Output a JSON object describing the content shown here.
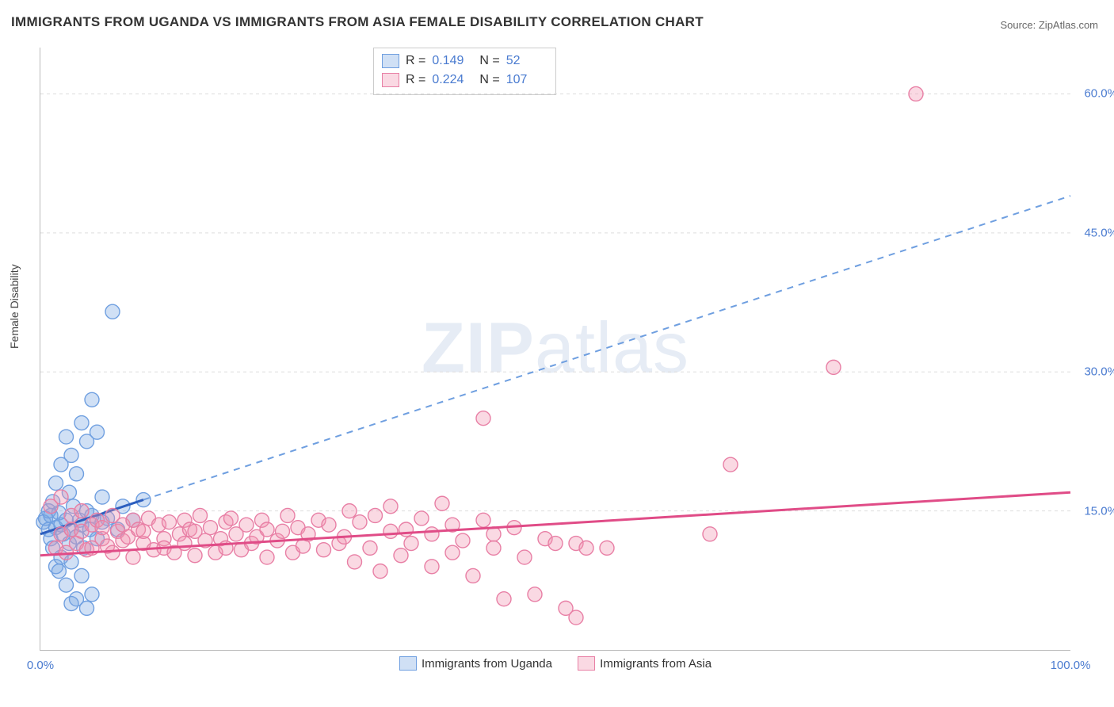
{
  "title": "IMMIGRANTS FROM UGANDA VS IMMIGRANTS FROM ASIA FEMALE DISABILITY CORRELATION CHART",
  "source": "Source: ZipAtlas.com",
  "ylabel": "Female Disability",
  "watermark_a": "ZIP",
  "watermark_b": "atlas",
  "chart": {
    "type": "scatter",
    "background_color": "#ffffff",
    "grid_color": "#dddddd",
    "xlim": [
      0,
      100
    ],
    "ylim": [
      0,
      65
    ],
    "xticks": [
      {
        "v": 0,
        "l": "0.0%"
      },
      {
        "v": 100,
        "l": "100.0%"
      }
    ],
    "yticks": [
      {
        "v": 15,
        "l": "15.0%"
      },
      {
        "v": 30,
        "l": "30.0%"
      },
      {
        "v": 45,
        "l": "45.0%"
      },
      {
        "v": 60,
        "l": "60.0%"
      }
    ],
    "marker_radius": 9,
    "series": [
      {
        "id": "uganda",
        "label": "Immigrants from Uganda",
        "fill": "rgba(120,165,225,0.35)",
        "stroke": "#6f9fe0",
        "line_color": "#2d5fbf",
        "dash_color": "#6f9fe0",
        "r": "0.149",
        "n": "52",
        "trend": {
          "x1": 0,
          "y1": 12.5,
          "x2": 10,
          "y2": 16.2
        },
        "trend_dash": {
          "x1": 10,
          "y1": 16.2,
          "x2": 100,
          "y2": 49
        },
        "points": [
          [
            0.3,
            13.8
          ],
          [
            0.5,
            14.2
          ],
          [
            0.8,
            13.0
          ],
          [
            0.8,
            15.0
          ],
          [
            1.0,
            12.0
          ],
          [
            1.0,
            14.5
          ],
          [
            1.2,
            11.0
          ],
          [
            1.2,
            16.0
          ],
          [
            1.5,
            9.0
          ],
          [
            1.5,
            13.2
          ],
          [
            1.5,
            18.0
          ],
          [
            1.8,
            8.5
          ],
          [
            1.8,
            14.8
          ],
          [
            2.0,
            10.0
          ],
          [
            2.0,
            13.5
          ],
          [
            2.0,
            20.0
          ],
          [
            2.2,
            12.5
          ],
          [
            2.5,
            7.0
          ],
          [
            2.5,
            14.0
          ],
          [
            2.5,
            23.0
          ],
          [
            2.8,
            11.5
          ],
          [
            2.8,
            17.0
          ],
          [
            3.0,
            9.5
          ],
          [
            3.0,
            13.0
          ],
          [
            3.0,
            21.0
          ],
          [
            3.2,
            15.5
          ],
          [
            3.5,
            5.5
          ],
          [
            3.5,
            12.2
          ],
          [
            3.5,
            19.0
          ],
          [
            3.8,
            14.0
          ],
          [
            4.0,
            8.0
          ],
          [
            4.0,
            13.5
          ],
          [
            4.0,
            24.5
          ],
          [
            4.2,
            11.0
          ],
          [
            4.5,
            15.0
          ],
          [
            4.5,
            22.5
          ],
          [
            4.8,
            13.0
          ],
          [
            5.0,
            6.0
          ],
          [
            5.0,
            14.5
          ],
          [
            5.0,
            27.0
          ],
          [
            5.5,
            12.0
          ],
          [
            5.5,
            23.5
          ],
          [
            6.0,
            13.8
          ],
          [
            6.0,
            16.5
          ],
          [
            6.5,
            14.2
          ],
          [
            7.0,
            36.5
          ],
          [
            7.5,
            13.0
          ],
          [
            8.0,
            15.5
          ],
          [
            9.0,
            14.0
          ],
          [
            10.0,
            16.2
          ],
          [
            3.0,
            5.0
          ],
          [
            4.5,
            4.5
          ]
        ]
      },
      {
        "id": "asia",
        "label": "Immigrants from Asia",
        "fill": "rgba(240,145,175,0.35)",
        "stroke": "#e87fa5",
        "line_color": "#e04c87",
        "r": "0.224",
        "n": "107",
        "trend": {
          "x1": 0,
          "y1": 10.2,
          "x2": 100,
          "y2": 17.0
        },
        "points": [
          [
            1.0,
            15.5
          ],
          [
            1.5,
            11.0
          ],
          [
            2.0,
            12.5
          ],
          [
            2.0,
            16.5
          ],
          [
            2.5,
            10.5
          ],
          [
            3.0,
            13.0
          ],
          [
            3.0,
            14.5
          ],
          [
            3.5,
            11.5
          ],
          [
            4.0,
            12.8
          ],
          [
            4.0,
            15.0
          ],
          [
            4.5,
            10.8
          ],
          [
            5.0,
            13.5
          ],
          [
            5.0,
            11.0
          ],
          [
            5.5,
            14.0
          ],
          [
            6.0,
            12.0
          ],
          [
            6.0,
            13.2
          ],
          [
            6.5,
            11.2
          ],
          [
            7.0,
            14.5
          ],
          [
            7.0,
            10.5
          ],
          [
            7.5,
            12.8
          ],
          [
            8.0,
            13.5
          ],
          [
            8.0,
            11.8
          ],
          [
            8.5,
            12.2
          ],
          [
            9.0,
            14.0
          ],
          [
            9.0,
            10.0
          ],
          [
            9.5,
            13.0
          ],
          [
            10.0,
            11.5
          ],
          [
            10.0,
            12.8
          ],
          [
            10.5,
            14.2
          ],
          [
            11.0,
            10.8
          ],
          [
            11.5,
            13.5
          ],
          [
            12.0,
            12.0
          ],
          [
            12.0,
            11.0
          ],
          [
            12.5,
            13.8
          ],
          [
            13.0,
            10.5
          ],
          [
            13.5,
            12.5
          ],
          [
            14.0,
            14.0
          ],
          [
            14.0,
            11.5
          ],
          [
            14.5,
            13.0
          ],
          [
            15.0,
            10.2
          ],
          [
            15.0,
            12.8
          ],
          [
            15.5,
            14.5
          ],
          [
            16.0,
            11.8
          ],
          [
            16.5,
            13.2
          ],
          [
            17.0,
            10.5
          ],
          [
            17.5,
            12.0
          ],
          [
            18.0,
            13.8
          ],
          [
            18.0,
            11.0
          ],
          [
            18.5,
            14.2
          ],
          [
            19.0,
            12.5
          ],
          [
            19.5,
            10.8
          ],
          [
            20.0,
            13.5
          ],
          [
            20.5,
            11.5
          ],
          [
            21.0,
            12.2
          ],
          [
            21.5,
            14.0
          ],
          [
            22.0,
            10.0
          ],
          [
            22.0,
            13.0
          ],
          [
            23.0,
            11.8
          ],
          [
            23.5,
            12.8
          ],
          [
            24.0,
            14.5
          ],
          [
            24.5,
            10.5
          ],
          [
            25.0,
            13.2
          ],
          [
            25.5,
            11.2
          ],
          [
            26.0,
            12.5
          ],
          [
            27.0,
            14.0
          ],
          [
            27.5,
            10.8
          ],
          [
            28.0,
            13.5
          ],
          [
            29.0,
            11.5
          ],
          [
            29.5,
            12.2
          ],
          [
            30.0,
            15.0
          ],
          [
            30.5,
            9.5
          ],
          [
            31.0,
            13.8
          ],
          [
            32.0,
            11.0
          ],
          [
            32.5,
            14.5
          ],
          [
            33.0,
            8.5
          ],
          [
            34.0,
            12.8
          ],
          [
            34.0,
            15.5
          ],
          [
            35.0,
            10.2
          ],
          [
            35.5,
            13.0
          ],
          [
            36.0,
            11.5
          ],
          [
            37.0,
            14.2
          ],
          [
            38.0,
            9.0
          ],
          [
            38.0,
            12.5
          ],
          [
            39.0,
            15.8
          ],
          [
            40.0,
            10.5
          ],
          [
            40.0,
            13.5
          ],
          [
            41.0,
            11.8
          ],
          [
            42.0,
            8.0
          ],
          [
            43.0,
            14.0
          ],
          [
            43.0,
            25.0
          ],
          [
            44.0,
            11.0
          ],
          [
            44.0,
            12.5
          ],
          [
            45.0,
            5.5
          ],
          [
            46.0,
            13.2
          ],
          [
            47.0,
            10.0
          ],
          [
            48.0,
            6.0
          ],
          [
            49.0,
            12.0
          ],
          [
            50.0,
            11.5
          ],
          [
            51.0,
            4.5
          ],
          [
            52.0,
            3.5
          ],
          [
            52.0,
            11.5
          ],
          [
            55.0,
            11.0
          ],
          [
            65.0,
            12.5
          ],
          [
            67.0,
            20.0
          ],
          [
            77.0,
            30.5
          ],
          [
            85.0,
            60.0
          ],
          [
            53.0,
            11.0
          ]
        ]
      }
    ]
  }
}
